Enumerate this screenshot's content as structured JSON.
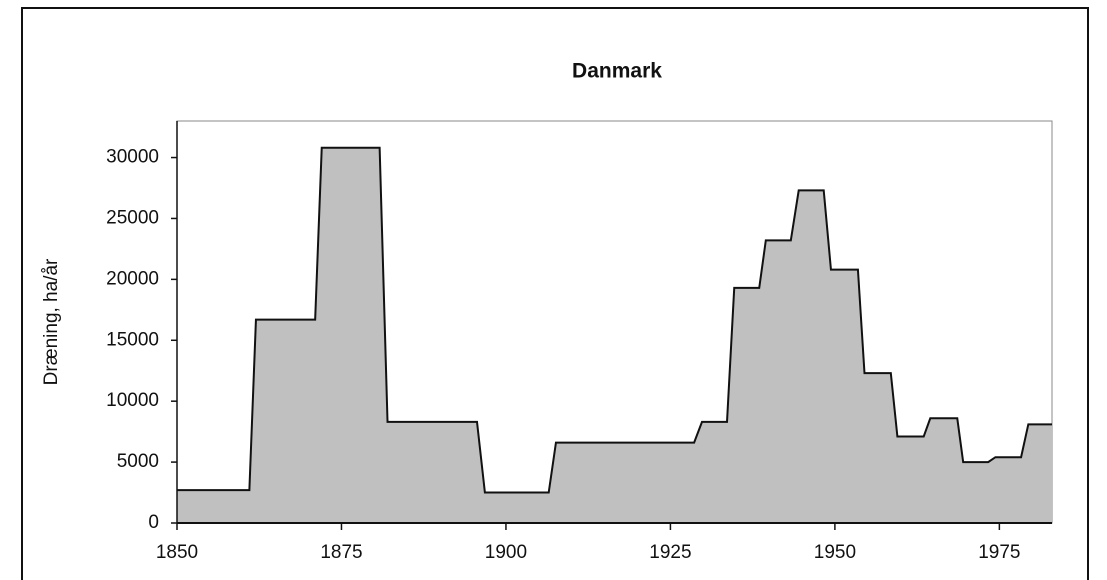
{
  "chart_data": {
    "type": "area",
    "title": "Danmark",
    "ylabel": "Dræning, ha/år",
    "x": [
      1850,
      1861,
      1862,
      1871,
      1872,
      1880.8,
      1882,
      1895.6,
      1896.8,
      1906.5,
      1907.6,
      1928.6,
      1929.8,
      1933.6,
      1934.7,
      1938.5,
      1939.5,
      1943.3,
      1944.5,
      1948.3,
      1949.4,
      1953.5,
      1954.5,
      1958.5,
      1959.5,
      1963.5,
      1964.5,
      1968.6,
      1969.5,
      1973.3,
      1974.4,
      1978.3,
      1979.4,
      1983
    ],
    "values": [
      2700,
      2700,
      16700,
      16700,
      30800,
      30800,
      8300,
      8300,
      2500,
      2500,
      6600,
      6600,
      8300,
      8300,
      19300,
      19300,
      23200,
      23200,
      27300,
      27300,
      20800,
      20800,
      12300,
      12300,
      7100,
      7100,
      8600,
      8600,
      5000,
      5000,
      5400,
      5400,
      8100,
      8100
    ],
    "color": "#c0c0c0",
    "xlim": [
      1850,
      1983
    ],
    "xticks": [
      1850,
      1875,
      1900,
      1925,
      1950,
      1975
    ],
    "ylim": [
      0,
      33000
    ],
    "yticks": [
      0,
      5000,
      10000,
      15000,
      20000,
      25000,
      30000
    ]
  }
}
